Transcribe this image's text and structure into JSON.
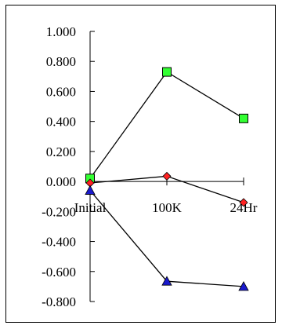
{
  "chart_data": {
    "type": "line",
    "categories": [
      "Initial",
      "100K",
      "24Hr"
    ],
    "ylim": [
      -0.8,
      1.0
    ],
    "yticks": [
      1.0,
      0.8,
      0.6,
      0.4,
      0.2,
      0.0,
      -0.2,
      -0.4,
      -0.6,
      -0.8
    ],
    "ytick_labels": [
      "1.000",
      "0.800",
      "0.600",
      "0.400",
      "0.200",
      "0.000",
      "-0.200",
      "-0.400",
      "-0.600",
      "-0.800"
    ],
    "series": [
      {
        "values": [
          0.02,
          0.73,
          0.42
        ],
        "color": "#33ff33",
        "marker": "square"
      },
      {
        "values": [
          -0.01,
          0.035,
          -0.14
        ],
        "color": "#ff2222",
        "marker": "diamond"
      },
      {
        "values": [
          -0.06,
          -0.665,
          -0.7
        ],
        "color": "#1a1acc",
        "marker": "triangle"
      }
    ],
    "grid": false,
    "legend": "none"
  }
}
